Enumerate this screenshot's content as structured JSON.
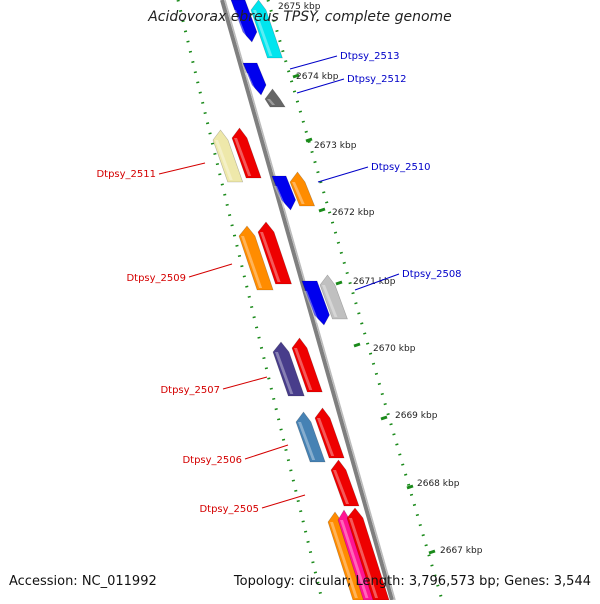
{
  "title": "Acidovorax ebreus TPSY, complete genome",
  "footer": {
    "accession": "Accession: NC_011992",
    "summary": "Topology: circular; Length: 3,796,573 bp; Genes: 3,544"
  },
  "colors": {
    "backbone": "#7f7f7f",
    "scale_dots": "#1a8a1a",
    "label_forward": "#d40000",
    "label_reverse": "#0000c8"
  },
  "scale_labels": [
    "2675 kbp",
    "2674 kbp",
    "2673 kbp",
    "2672 kbp",
    "2671 kbp",
    "2670 kbp",
    "2669 kbp",
    "2668 kbp",
    "2667 kbp"
  ],
  "gene_labels": {
    "right": [
      "Dtpsy_2513",
      "Dtpsy_2512",
      "Dtpsy_2510",
      "Dtpsy_2508"
    ],
    "left": [
      "Dtpsy_2511",
      "Dtpsy_2509",
      "Dtpsy_2507",
      "Dtpsy_2506",
      "Dtpsy_2505"
    ]
  },
  "genes": [
    {
      "id": "g_cyan",
      "color": "#00e5ee"
    },
    {
      "id": "g_blue_top",
      "color": "#0000ee"
    },
    {
      "id": "g_2513",
      "color": "#0000ee"
    },
    {
      "id": "g_2512",
      "color": "#666666"
    },
    {
      "id": "g_2511_y",
      "color": "#eee8aa"
    },
    {
      "id": "g_2511_r",
      "color": "#ee0000"
    },
    {
      "id": "g_2510_b",
      "color": "#0000ee"
    },
    {
      "id": "g_2510_o",
      "color": "#ff8c00"
    },
    {
      "id": "g_2509_o",
      "color": "#ff8c00"
    },
    {
      "id": "g_2509_r",
      "color": "#ee0000"
    },
    {
      "id": "g_2508_b",
      "color": "#0000ee"
    },
    {
      "id": "g_2508_g",
      "color": "#c0c0c0"
    },
    {
      "id": "g_2507_p",
      "color": "#483d8b"
    },
    {
      "id": "g_2507_r",
      "color": "#ee0000"
    },
    {
      "id": "g_2506_s",
      "color": "#4682b4"
    },
    {
      "id": "g_2506_r",
      "color": "#ee0000"
    },
    {
      "id": "g_2505_r",
      "color": "#ee0000"
    },
    {
      "id": "g_bot_o",
      "color": "#ff8c00"
    },
    {
      "id": "g_bot_m",
      "color": "#ff1493"
    },
    {
      "id": "g_bot_r",
      "color": "#ee0000"
    }
  ]
}
